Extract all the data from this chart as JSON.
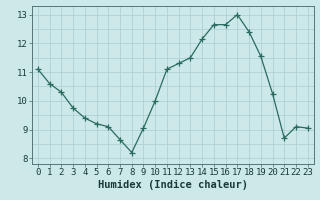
{
  "x": [
    0,
    1,
    2,
    3,
    4,
    5,
    6,
    7,
    8,
    9,
    10,
    11,
    12,
    13,
    14,
    15,
    16,
    17,
    18,
    19,
    20,
    21,
    22,
    23
  ],
  "y": [
    11.1,
    10.6,
    10.3,
    9.75,
    9.4,
    9.2,
    9.1,
    8.65,
    8.2,
    9.05,
    10.0,
    11.1,
    11.3,
    11.5,
    12.15,
    12.65,
    12.65,
    13.0,
    12.4,
    11.55,
    10.25,
    8.7,
    9.1,
    9.05
  ],
  "line_color": "#2a6b5f",
  "marker": "+",
  "marker_size": 4,
  "bg_color": "#cce8e8",
  "xlabel": "Humidex (Indice chaleur)",
  "xlim": [
    -0.5,
    23.5
  ],
  "ylim": [
    7.8,
    13.3
  ],
  "yticks": [
    8,
    9,
    10,
    11,
    12,
    13
  ],
  "xticks": [
    0,
    1,
    2,
    3,
    4,
    5,
    6,
    7,
    8,
    9,
    10,
    11,
    12,
    13,
    14,
    15,
    16,
    17,
    18,
    19,
    20,
    21,
    22,
    23
  ],
  "tick_label_fontsize": 6.5,
  "xlabel_fontsize": 7.5,
  "grid_color": "#aacece"
}
